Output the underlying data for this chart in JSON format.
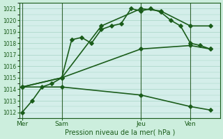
{
  "title": "Pression niveau de la mer( hPa )",
  "background_color": "#cceedd",
  "plot_bg_color": "#d4eeea",
  "grid_color": "#99ccbb",
  "line_color": "#1a5c1a",
  "vline_color": "#336633",
  "ylim": [
    1011.5,
    1021.5
  ],
  "yticks": [
    1012,
    1013,
    1014,
    1015,
    1016,
    1017,
    1018,
    1019,
    1020,
    1021
  ],
  "xtick_labels": [
    "Mer",
    "Sam",
    "Jeu",
    "Ven"
  ],
  "xtick_positions": [
    0,
    4,
    12,
    17
  ],
  "xlim": [
    -0.3,
    20
  ],
  "series": [
    {
      "x": [
        0,
        1,
        2,
        3,
        4,
        5,
        6,
        7,
        8,
        9,
        10,
        11,
        12,
        13,
        14,
        15,
        16,
        17,
        18,
        19
      ],
      "y": [
        1012.0,
        1013.0,
        1014.2,
        1014.5,
        1015.0,
        1018.3,
        1018.5,
        1018.0,
        1019.2,
        1019.5,
        1019.7,
        1021.0,
        1020.8,
        1021.0,
        1020.7,
        1020.0,
        1019.5,
        1018.0,
        1017.8,
        1017.5
      ]
    },
    {
      "x": [
        0,
        4,
        8,
        12,
        14,
        17,
        19
      ],
      "y": [
        1014.2,
        1015.0,
        1019.5,
        1021.0,
        1020.8,
        1019.5,
        1019.5
      ]
    },
    {
      "x": [
        0,
        4,
        12,
        17,
        19
      ],
      "y": [
        1014.2,
        1015.0,
        1017.5,
        1017.8,
        1017.5
      ]
    },
    {
      "x": [
        0,
        4,
        12,
        17,
        19
      ],
      "y": [
        1014.2,
        1014.2,
        1013.5,
        1012.5,
        1012.2
      ]
    }
  ],
  "vline_positions": [
    0,
    4,
    12,
    17
  ],
  "marker": "D",
  "markersize": 3,
  "linewidth": 1.2
}
